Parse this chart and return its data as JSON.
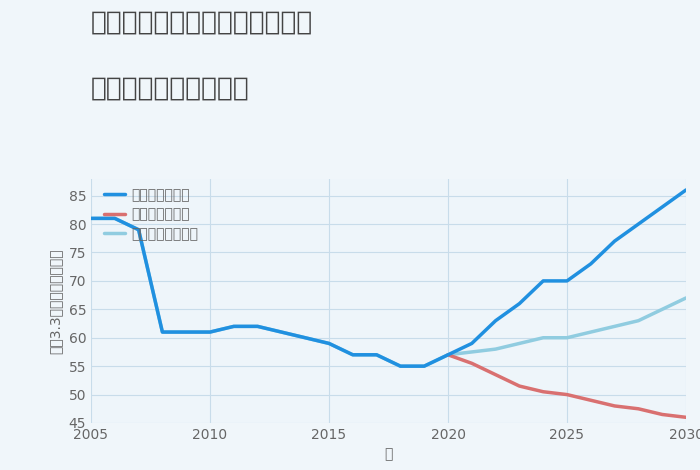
{
  "title_line1": "三重県津市一志町みのりヶ丘の",
  "title_line2": "中古戸建ての価格推移",
  "xlabel": "年",
  "ylabel": "坪（3.3㎡）単価（万円）",
  "background_color": "#f0f6fa",
  "plot_background": "#eef5fa",
  "grid_color": "#c8dcea",
  "ylim": [
    45,
    88
  ],
  "xlim": [
    2005,
    2030
  ],
  "yticks": [
    45,
    50,
    55,
    60,
    65,
    70,
    75,
    80,
    85
  ],
  "xticks": [
    2005,
    2010,
    2015,
    2020,
    2025,
    2030
  ],
  "good_scenario": {
    "label": "グッドシナリオ",
    "color": "#2090e0",
    "linewidth": 2.5,
    "x": [
      2005,
      2006,
      2007,
      2008,
      2009,
      2010,
      2011,
      2012,
      2013,
      2014,
      2015,
      2016,
      2017,
      2018,
      2019,
      2020,
      2021,
      2022,
      2023,
      2024,
      2025,
      2026,
      2027,
      2028,
      2029,
      2030
    ],
    "y": [
      81,
      81,
      79,
      61,
      61,
      61,
      62,
      62,
      61,
      60,
      59,
      57,
      57,
      55,
      55,
      57,
      59,
      63,
      66,
      70,
      70,
      73,
      77,
      80,
      83,
      86
    ]
  },
  "bad_scenario": {
    "label": "バッドシナリオ",
    "color": "#d97070",
    "linewidth": 2.5,
    "x": [
      2020,
      2021,
      2022,
      2023,
      2024,
      2025,
      2026,
      2027,
      2028,
      2029,
      2030
    ],
    "y": [
      57,
      55.5,
      53.5,
      51.5,
      50.5,
      50,
      49,
      48,
      47.5,
      46.5,
      46
    ]
  },
  "normal_scenario": {
    "label": "ノーマルシナリオ",
    "color": "#90cce0",
    "linewidth": 2.5,
    "x": [
      2005,
      2006,
      2007,
      2008,
      2009,
      2010,
      2011,
      2012,
      2013,
      2014,
      2015,
      2016,
      2017,
      2018,
      2019,
      2020,
      2021,
      2022,
      2023,
      2024,
      2025,
      2026,
      2027,
      2028,
      2029,
      2030
    ],
    "y": [
      81,
      81,
      79,
      61,
      61,
      61,
      62,
      62,
      61,
      60,
      59,
      57,
      57,
      55,
      55,
      57,
      57.5,
      58,
      59,
      60,
      60,
      61,
      62,
      63,
      65,
      67
    ]
  },
  "title_color": "#444444",
  "tick_color": "#666666",
  "legend_fontsize": 10,
  "title_fontsize": 19,
  "axis_label_fontsize": 10
}
